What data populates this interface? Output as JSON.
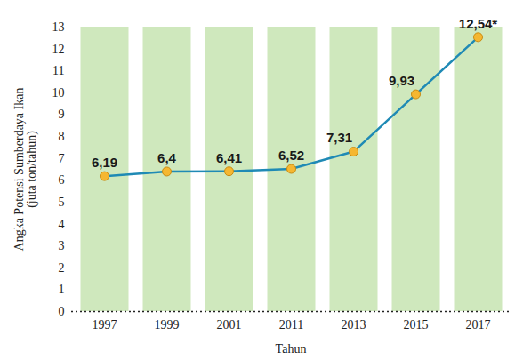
{
  "chart_data": {
    "type": "line",
    "x_label": "Tahun",
    "y_label": "Angka Potensi Sumberdaya Ikan (juta ton/tahun)",
    "categories": [
      "1997",
      "1999",
      "2001",
      "2011",
      "2013",
      "2015",
      "2017"
    ],
    "values": [
      6.19,
      6.4,
      6.41,
      6.52,
      7.31,
      9.93,
      12.54
    ],
    "value_labels": [
      "6,19",
      "6,4",
      "6,41",
      "6,52",
      "7,31",
      "9,93",
      "12,54*"
    ],
    "data_labels": true,
    "color": "#1f8ab5",
    "marker": "circle",
    "ylim": [
      0,
      13
    ],
    "yticks": [
      0,
      1,
      2,
      3,
      4,
      5,
      6,
      7,
      8,
      9,
      10,
      11,
      12,
      13
    ],
    "grid": false
  }
}
